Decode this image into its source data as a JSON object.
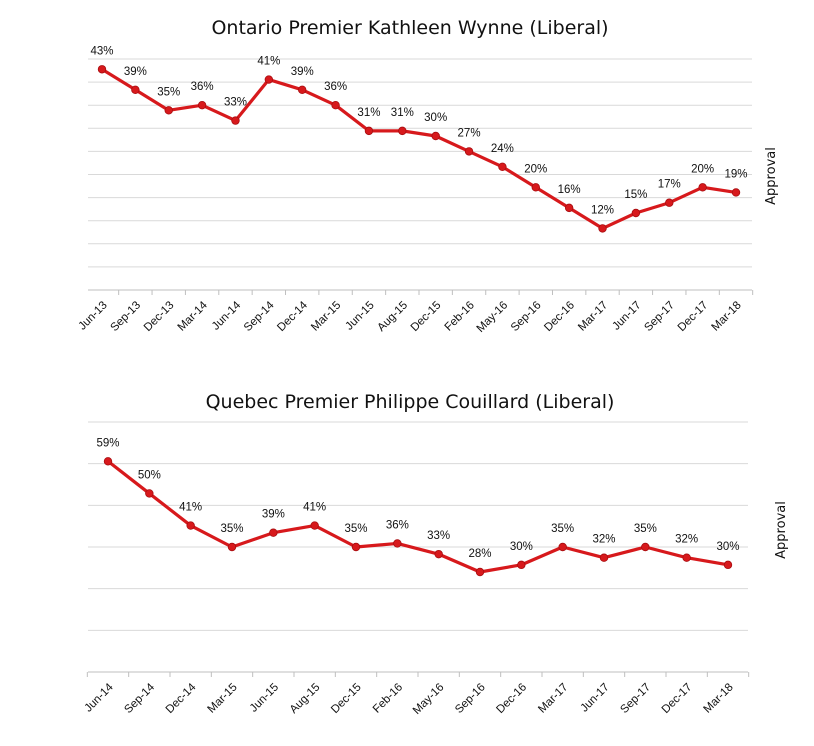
{
  "chart_data": [
    {
      "type": "line",
      "title": "Ontario Premier Kathleen Wynne (Liberal)",
      "ylabel": "Approval",
      "xlabel": "",
      "ylim": [
        0,
        45
      ],
      "grid": true,
      "categories": [
        "Jun-13",
        "Sep-13",
        "Dec-13",
        "Mar-14",
        "Jun-14",
        "Sep-14",
        "Dec-14",
        "Mar-15",
        "Jun-15",
        "Aug-15",
        "Dec-15",
        "Feb-16",
        "May-16",
        "Sep-16",
        "Dec-16",
        "Mar-17",
        "Jun-17",
        "Sep-17",
        "Dec-17",
        "Mar-18"
      ],
      "series": [
        {
          "values": [
            43,
            39,
            35,
            36,
            33,
            41,
            39,
            36,
            31,
            31,
            30,
            27,
            24,
            20,
            16,
            12,
            15,
            17,
            20,
            19
          ],
          "labels": [
            "43%",
            "39%",
            "35%",
            "36%",
            "33%",
            "41%",
            "39%",
            "36%",
            "31%",
            "31%",
            "30%",
            "27%",
            "24%",
            "20%",
            "16%",
            "12%",
            "15%",
            "17%",
            "20%",
            "19%"
          ],
          "color": "#d7191c"
        }
      ]
    },
    {
      "type": "line",
      "title": "Quebec Premier Philippe Couillard (Liberal)",
      "ylabel": "Approval",
      "xlabel": "",
      "ylim": [
        0,
        70
      ],
      "grid": true,
      "categories": [
        "Jun-14",
        "Sep-14",
        "Dec-14",
        "Mar-15",
        "Jun-15",
        "Aug-15",
        "Dec-15",
        "Feb-16",
        "May-16",
        "Sep-16",
        "Dec-16",
        "Mar-17",
        "Jun-17",
        "Sep-17",
        "Dec-17",
        "Mar-18"
      ],
      "series": [
        {
          "values": [
            59,
            50,
            41,
            35,
            39,
            41,
            35,
            36,
            33,
            28,
            30,
            35,
            32,
            35,
            32,
            30
          ],
          "labels": [
            "59%",
            "50%",
            "41%",
            "35%",
            "39%",
            "41%",
            "35%",
            "36%",
            "33%",
            "28%",
            "30%",
            "35%",
            "32%",
            "35%",
            "32%",
            "30%"
          ],
          "color": "#d7191c"
        }
      ]
    }
  ]
}
